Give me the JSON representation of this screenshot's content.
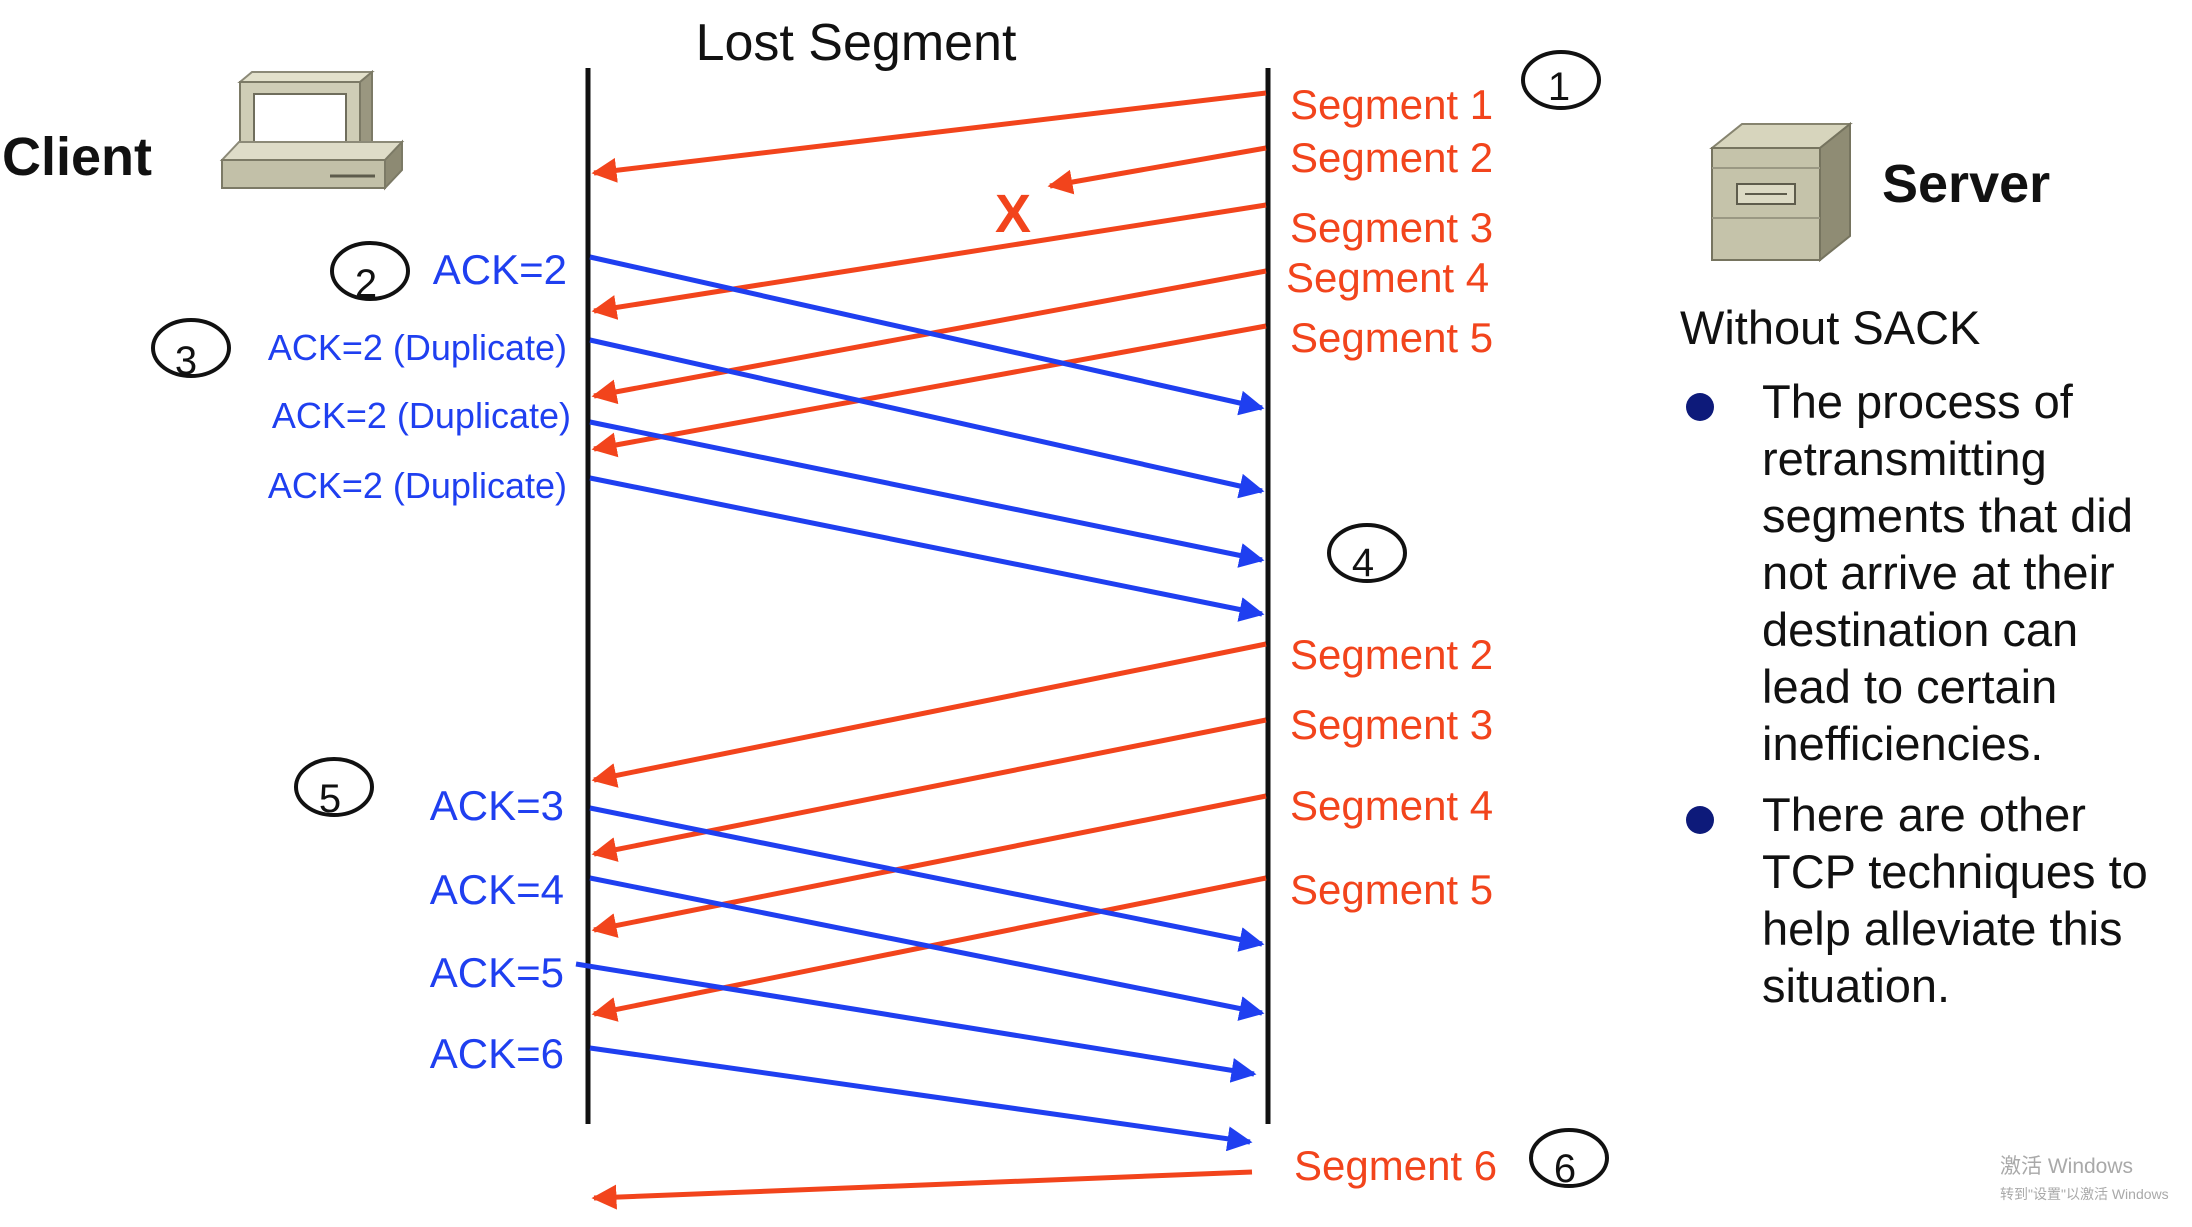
{
  "title": "Lost Segment",
  "client_label": "Client",
  "server_label": "Server",
  "panel": {
    "heading": "Without SACK",
    "bullets": [
      "The process of retransmitting segments that did not arrive at their destination can lead to certain inefficiencies.",
      "There are other TCP techniques to help alleviate this situation."
    ]
  },
  "lost_marker": "X",
  "steps": [
    "1",
    "2",
    "3",
    "4",
    "5",
    "6"
  ],
  "segments_initial": [
    "Segment 1",
    "Segment 2",
    "Segment 3",
    "Segment 4",
    "Segment 5"
  ],
  "acks_initial": [
    "ACK=2",
    "ACK=2 (Duplicate)",
    "ACK=2 (Duplicate)",
    "ACK=2 (Duplicate)"
  ],
  "segments_retransmit": [
    "Segment 2",
    "Segment 3",
    "Segment 4",
    "Segment 5"
  ],
  "acks_retransmit": [
    "ACK=3",
    "ACK=4",
    "ACK=5",
    "ACK=6"
  ],
  "segment_final": "Segment 6",
  "watermark": {
    "line1": "激活 Windows",
    "line2": "转到\"设置\"以激活 Windows"
  },
  "colors": {
    "segment": "#f2441c",
    "ack": "#1f3ff0",
    "timeline": "#111111",
    "bullet": "#0d1a7a"
  }
}
